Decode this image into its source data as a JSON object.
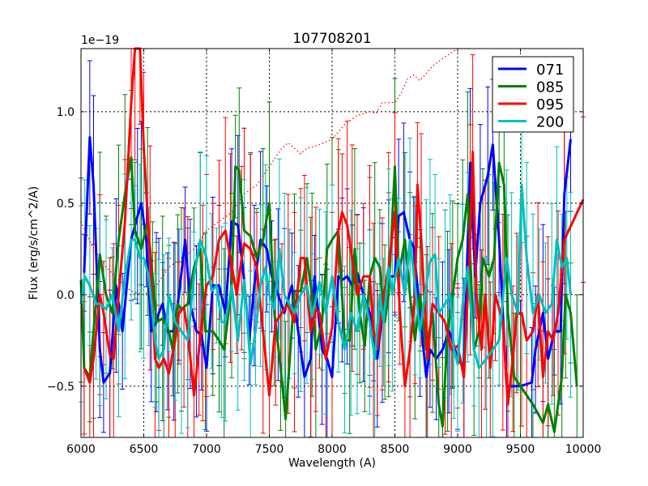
{
  "chart_data": {
    "type": "line",
    "title": "107708201",
    "xlabel": "Wavelength (A)",
    "ylabel": "Flux (erg/s/cm^2/A)",
    "y_offset_label": "1e−19",
    "xlim": [
      6000,
      10000
    ],
    "ylim": [
      -0.78,
      1.345
    ],
    "xticks": [
      6000,
      6500,
      7000,
      7500,
      8000,
      8500,
      9000,
      9500,
      10000
    ],
    "xtick_labels": [
      "6000",
      "6500",
      "7000",
      "7500",
      "8000",
      "8500",
      "9000",
      "9500",
      "10000"
    ],
    "yticks": [
      -0.5,
      0.0,
      0.5,
      1.0
    ],
    "ytick_labels": [
      "−0.5",
      "0.0",
      "0.5",
      "1.0"
    ],
    "grid": true,
    "legend_position": "top-right",
    "series": [
      {
        "name": "071",
        "color": "#0000ff",
        "yerr": 0.35,
        "x": [
          6025,
          6070,
          6100,
          6150,
          6180,
          6230,
          6280,
          6330,
          6400,
          6450,
          6480,
          6520,
          6560,
          6600,
          6620,
          6650,
          6690,
          6740,
          6780,
          6830,
          6870,
          6920,
          6960,
          7000,
          7050,
          7100,
          7150,
          7200,
          7250,
          7300,
          7340,
          7380,
          7430,
          7480,
          7520,
          7570,
          7620,
          7680,
          7730,
          7780,
          7830,
          7860,
          7920,
          7960,
          8000,
          8050,
          8080,
          8120,
          8160,
          8200,
          8250,
          8300,
          8330,
          8360,
          8400,
          8450,
          8500,
          8530,
          8570,
          8620,
          8650,
          8700,
          8750,
          8780,
          8830,
          8880,
          8930,
          8960,
          9000,
          9050,
          9100,
          9140,
          9180,
          9240,
          9280,
          9330,
          9390,
          9500,
          9590,
          9620,
          9680,
          9720,
          9770,
          9820,
          9850,
          9900
        ],
        "y": [
          0.12,
          0.86,
          0.6,
          -0.3,
          -0.48,
          -0.43,
          0.05,
          -0.2,
          0.3,
          0.43,
          0.5,
          0.3,
          -0.2,
          -0.15,
          -0.1,
          -0.05,
          -0.2,
          -0.2,
          0.0,
          0.3,
          -0.05,
          -0.2,
          -0.22,
          -0.4,
          0.05,
          0.05,
          -0.1,
          0.4,
          0.38,
          0.08,
          -0.25,
          0.05,
          0.3,
          0.25,
          0.1,
          0.0,
          -0.1,
          0.05,
          -0.2,
          -0.45,
          -0.35,
          0.1,
          -0.3,
          -0.35,
          -0.45,
          0.1,
          0.08,
          0.1,
          0.05,
          0.12,
          0.0,
          -0.1,
          -0.2,
          -0.35,
          -0.1,
          0.1,
          0.1,
          0.43,
          0.45,
          0.3,
          0.26,
          -0.1,
          -0.45,
          -0.3,
          -0.35,
          -0.3,
          -0.2,
          -0.25,
          -0.35,
          -0.4,
          0.72,
          0.1,
          0.5,
          0.65,
          0.82,
          0.3,
          -0.5,
          -0.5,
          -0.48,
          -0.3,
          -0.1,
          -0.35,
          -0.2,
          -0.2,
          0.55,
          0.85
        ]
      },
      {
        "name": "085",
        "color": "#008000",
        "yerr": 0.4,
        "x": [
          6000,
          6025,
          6070,
          6100,
          6150,
          6200,
          6250,
          6300,
          6350,
          6400,
          6430,
          6480,
          6530,
          6570,
          6600,
          6650,
          6700,
          6730,
          6770,
          6800,
          6850,
          6900,
          6950,
          6990,
          7050,
          7100,
          7140,
          7200,
          7230,
          7260,
          7300,
          7350,
          7400,
          7450,
          7500,
          7540,
          7590,
          7630,
          7700,
          7750,
          7800,
          7840,
          7870,
          7920,
          7960,
          8000,
          8050,
          8100,
          8140,
          8180,
          8220,
          8260,
          8300,
          8340,
          8380,
          8420,
          8450,
          8500,
          8530,
          8580,
          8620,
          8660,
          8700,
          8750,
          8800,
          8850,
          8880,
          8920,
          8960,
          9000,
          9040,
          9080,
          9130,
          9170,
          9200,
          9250,
          9290,
          9330,
          9370,
          9400,
          9450,
          9500,
          9600,
          9680,
          9720,
          9770,
          9830,
          9860,
          9900,
          9950
        ],
        "y": [
          0.08,
          -0.4,
          -0.45,
          -0.2,
          0.22,
          0.0,
          -0.1,
          0.3,
          0.55,
          0.75,
          0.35,
          0.25,
          0.4,
          0.1,
          -0.15,
          -0.13,
          -0.2,
          -0.3,
          -0.05,
          -0.08,
          -0.05,
          0.15,
          0.25,
          -0.2,
          -0.2,
          -0.25,
          -0.3,
          0.05,
          0.7,
          0.68,
          0.35,
          0.32,
          0.2,
          0.3,
          0.5,
          -0.1,
          -0.4,
          -0.68,
          0.02,
          0.02,
          0.2,
          0.0,
          -0.3,
          -0.15,
          0.25,
          0.3,
          0.35,
          -0.25,
          -0.25,
          0.25,
          -0.1,
          -0.28,
          0.1,
          0.2,
          0.15,
          -0.15,
          0.0,
          0.7,
          0.1,
          0.3,
          0.0,
          -0.25,
          0.0,
          -0.3,
          -0.1,
          -0.6,
          -0.72,
          -0.2,
          0.0,
          0.2,
          0.3,
          0.55,
          -0.3,
          -0.2,
          0.2,
          0.1,
          0.2,
          0.72,
          0.6,
          -0.1,
          -0.45,
          -0.5,
          -0.6,
          -0.7,
          -0.6,
          -0.75,
          -0.45,
          0.0,
          -0.1,
          -0.5
        ]
      },
      {
        "name": "095",
        "color": "#ff0000",
        "yerr": 0.45,
        "x": [
          6025,
          6070,
          6100,
          6150,
          6180,
          6230,
          6260,
          6300,
          6350,
          6400,
          6430,
          6470,
          6500,
          6550,
          6590,
          6620,
          6660,
          6700,
          6750,
          6780,
          6820,
          6850,
          6900,
          6940,
          6970,
          7000,
          7050,
          7100,
          7150,
          7190,
          7240,
          7280,
          7300,
          7350,
          7400,
          7450,
          7500,
          7550,
          7600,
          7650,
          7700,
          7750,
          7780,
          7830,
          7870,
          7900,
          7950,
          8000,
          8050,
          8080,
          8120,
          8160,
          8200,
          8250,
          8300,
          8330,
          8360,
          8400,
          8450,
          8500,
          8540,
          8580,
          8620,
          8660,
          8680,
          8710,
          8760,
          8800,
          8850,
          8900,
          8950,
          9000,
          9050,
          9100,
          9120,
          9150,
          9190,
          9220,
          9260,
          9300,
          9360,
          9400,
          9440,
          9470,
          9510,
          9550,
          9600,
          9640,
          9680,
          9720,
          9760,
          9800,
          9850,
          10000
        ],
        "y": [
          -0.4,
          -0.48,
          -0.35,
          0.0,
          -0.1,
          -0.33,
          -0.35,
          0.0,
          0.4,
          1.05,
          1.35,
          1.35,
          0.8,
          0.2,
          -0.35,
          -0.4,
          -0.35,
          -0.43,
          -0.25,
          -0.1,
          -0.07,
          -0.2,
          -0.55,
          -0.3,
          -0.1,
          0.05,
          0.1,
          0.3,
          0.35,
          0.2,
          0.0,
          0.2,
          0.28,
          0.25,
          0.15,
          -0.2,
          -0.55,
          -0.15,
          -0.1,
          -0.05,
          -0.15,
          0.2,
          0.2,
          -0.2,
          -0.08,
          -0.1,
          -0.35,
          -0.18,
          0.35,
          0.45,
          0.38,
          0.2,
          0.0,
          0.1,
          0.1,
          -0.2,
          -0.3,
          -0.05,
          0.15,
          0.45,
          -0.1,
          -0.5,
          -0.3,
          0.0,
          0.6,
          0.3,
          -0.35,
          -0.05,
          -0.1,
          -0.15,
          -0.3,
          -0.28,
          -0.45,
          0.3,
          0.78,
          0.0,
          -0.3,
          0.0,
          -0.4,
          0.0,
          -0.15,
          -0.6,
          -0.35,
          -0.1,
          -0.1,
          -0.25,
          -0.2,
          0.0,
          -0.45,
          -0.2,
          -0.25,
          -0.1,
          0.3,
          0.52
        ]
      },
      {
        "name": "200",
        "color": "#00bfbf",
        "yerr": 0.4,
        "x": [
          6000,
          6030,
          6070,
          6120,
          6150,
          6200,
          6250,
          6300,
          6350,
          6400,
          6430,
          6470,
          6500,
          6540,
          6590,
          6620,
          6660,
          6700,
          6750,
          6800,
          6850,
          6900,
          6950,
          7000,
          7040,
          7080,
          7120,
          7150,
          7200,
          7250,
          7300,
          7350,
          7390,
          7430,
          7470,
          7500,
          7540,
          7580,
          7620,
          7660,
          7700,
          7750,
          7800,
          7840,
          7900,
          7950,
          8000,
          8050,
          8100,
          8150,
          8200,
          8250,
          8300,
          8340,
          8380,
          8410,
          8450,
          8480,
          8530,
          8580,
          8620,
          8660,
          8700,
          8750,
          8780,
          8820,
          8850,
          8900,
          8940,
          8970,
          9000,
          9040,
          9080,
          9130,
          9170,
          9230,
          9280,
          9330,
          9390,
          9430,
          9480,
          9510,
          9550,
          9600,
          9650,
          9700,
          9750,
          9790,
          9830,
          9870,
          9900
        ],
        "y": [
          -0.05,
          0.1,
          0.05,
          -0.05,
          -0.05,
          -0.08,
          0.0,
          -0.2,
          0.1,
          0.3,
          0.3,
          0.2,
          0.2,
          0.1,
          -0.25,
          -0.35,
          -0.3,
          0.0,
          -0.15,
          -0.2,
          -0.25,
          0.1,
          0.3,
          0.2,
          0.02,
          0.05,
          -0.15,
          -0.15,
          0.05,
          -0.25,
          0.08,
          -0.38,
          -0.2,
          0.05,
          0.15,
          0.0,
          -0.08,
          0.25,
          0.0,
          -0.05,
          -0.1,
          0.0,
          0.05,
          -0.12,
          0.07,
          -0.1,
          0.1,
          -0.15,
          -0.3,
          -0.1,
          -0.2,
          0.0,
          -0.15,
          -0.35,
          0.0,
          -0.15,
          0.15,
          0.0,
          0.2,
          0.0,
          0.3,
          0.05,
          -0.2,
          0.05,
          0.18,
          0.22,
          -0.1,
          -0.05,
          0.0,
          -0.3,
          -0.38,
          -0.05,
          0.15,
          -0.3,
          -0.4,
          -0.35,
          -0.3,
          -0.25,
          0.2,
          0.0,
          -0.1,
          0.6,
          0.2,
          -0.1,
          0.0,
          -0.1,
          -0.05,
          0.3,
          0.15,
          0.2,
          0.0
        ]
      }
    ],
    "reference_line": {
      "color": "#ff0000",
      "style": "dotted",
      "x": [
        6000,
        6100,
        6200,
        6300,
        6400,
        6500,
        6600,
        6700,
        6800,
        6900,
        7000,
        7100,
        7200,
        7300,
        7400,
        7500,
        7600,
        7650,
        7700,
        7750,
        7800,
        7900,
        8000,
        8100,
        8200,
        8300,
        8350,
        8400,
        8500,
        8550,
        8600,
        8650,
        8700,
        8800,
        8900,
        9000,
        9100
      ],
      "y": [
        0.4,
        0.25,
        0.15,
        0.08,
        0.02,
        0.0,
        0.05,
        0.15,
        0.2,
        0.25,
        0.35,
        0.4,
        0.45,
        0.55,
        0.6,
        0.7,
        0.8,
        0.83,
        0.8,
        0.77,
        0.8,
        0.82,
        0.85,
        0.93,
        0.98,
        1.0,
        0.99,
        1.05,
        1.05,
        1.1,
        1.18,
        1.2,
        1.17,
        1.25,
        1.3,
        1.35,
        1.4
      ]
    }
  }
}
